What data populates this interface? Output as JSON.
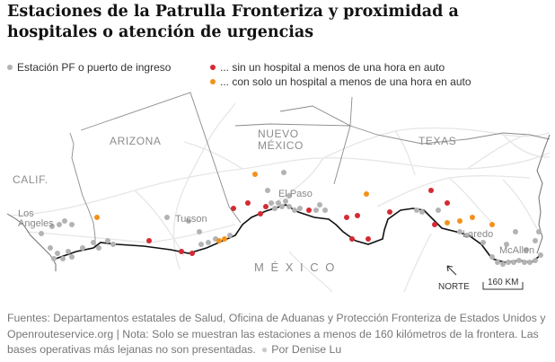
{
  "title": "Estaciones de la Patrulla Fronteriza y proximidad a hospitales o atención de urgencias",
  "legend": {
    "station": "Estación PF o puerto de ingreso",
    "no_hospital": "... sin un hospital a menos de una hora en auto",
    "one_hospital": "... con solo un hospital a menos de una hora en auto"
  },
  "colors": {
    "station": "#b3b3b3",
    "no_hospital": "#d42a33",
    "one_hospital": "#f2921b",
    "border": "#111111",
    "state_line": "#8a8a8a",
    "road": "#e4e4e4"
  },
  "map": {
    "regions": {
      "calif": "CALIF.",
      "arizona": "ARIZONA",
      "nuevo_mexico_1": "NUEVO",
      "nuevo_mexico_2": "MÉXICO",
      "texas": "TEXAS",
      "mexico": "M É X I C O"
    },
    "cities": {
      "los_angeles_1": "Los",
      "los_angeles_2": "Angeles",
      "tucson": "Tucson",
      "el_paso": "El Paso",
      "laredo": "Laredo",
      "mcallen": "McAllen"
    },
    "north_label": "NORTE",
    "scale_label": "160 KM"
  },
  "footer": {
    "sources": "Fuentes: Departamentos estatales de Salud, Oficina de Aduanas y Protección Fronteriza de Estados Unidos y Openrouteservice.org | Nota: Solo se muestran las estaciones a menos de 160 kilómetros de la frontera. Las bases operativas más lejanas no son presentadas.",
    "byline": "Por Denise Lu"
  }
}
